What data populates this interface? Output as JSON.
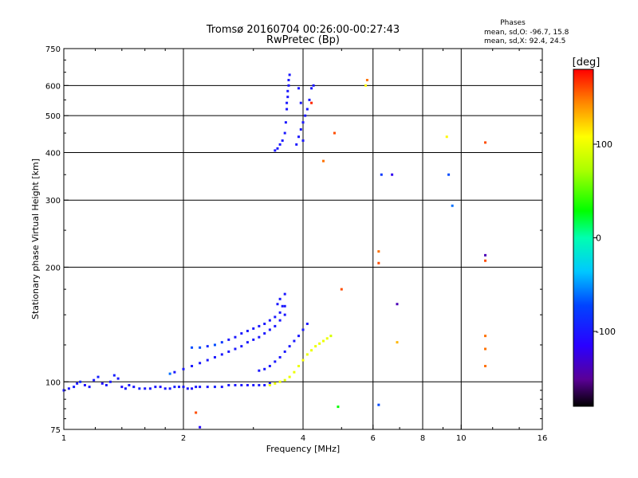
{
  "chart_data": {
    "type": "scatter",
    "title": "Tromsø 20160704 00:26:00-00:27:43",
    "subtitle": "RwPretec (Bp)",
    "xlabel": "Frequency [MHz]",
    "ylabel": "Stationary phase Virtual Height [km]",
    "x_scale": "log",
    "y_scale": "log",
    "xlim": [
      1,
      16
    ],
    "ylim": [
      75,
      750
    ],
    "x_ticks": [
      1,
      2,
      4,
      6,
      8,
      10,
      16
    ],
    "x_tick_labels": [
      "1",
      "2",
      "4",
      "6",
      "8",
      "10",
      "16"
    ],
    "x_gridlines": [
      2,
      4,
      6,
      8,
      10
    ],
    "y_ticks": [
      75,
      100,
      200,
      300,
      400,
      500,
      600,
      750
    ],
    "y_tick_labels": [
      "75",
      "100",
      "200",
      "300",
      "400",
      "500",
      "600",
      "750"
    ],
    "y_gridlines": [
      100,
      200,
      300,
      400,
      500,
      600
    ],
    "grid": true,
    "phase_info": {
      "title": "Phases",
      "line_o": "mean, sd,O: -96.7, 15.8",
      "line_x": "mean, sd,X:  92.4, 24.5"
    },
    "colorbar": {
      "label": "[deg]",
      "min": -180,
      "max": 180,
      "ticks": [
        -100,
        0,
        100
      ],
      "tick_labels": [
        "-100",
        "0",
        "100"
      ],
      "colormap": "rainbow"
    },
    "series": [
      {
        "name": "",
        "note_color": "phase",
        "points": [
          [
            1.0,
            95,
            -100
          ],
          [
            1.03,
            96,
            -100
          ],
          [
            1.06,
            97,
            -95
          ],
          [
            1.08,
            99,
            -100
          ],
          [
            1.1,
            100,
            -90
          ],
          [
            1.13,
            98,
            -105
          ],
          [
            1.16,
            97,
            -100
          ],
          [
            1.19,
            101,
            -100
          ],
          [
            1.22,
            103,
            -95
          ],
          [
            1.25,
            99,
            -105
          ],
          [
            1.28,
            98,
            -100
          ],
          [
            1.31,
            100,
            -100
          ],
          [
            1.34,
            104,
            -95
          ],
          [
            1.37,
            102,
            -100
          ],
          [
            1.4,
            97,
            -105
          ],
          [
            1.43,
            96,
            -100
          ],
          [
            1.46,
            98,
            -100
          ],
          [
            1.5,
            97,
            -100
          ],
          [
            1.55,
            96,
            -95
          ],
          [
            1.6,
            96,
            -100
          ],
          [
            1.65,
            96,
            -100
          ],
          [
            1.7,
            97,
            -100
          ],
          [
            1.75,
            97,
            -105
          ],
          [
            1.8,
            96,
            -100
          ],
          [
            1.85,
            96,
            -100
          ],
          [
            1.9,
            97,
            -95
          ],
          [
            1.95,
            97,
            -100
          ],
          [
            2.0,
            97,
            -100
          ],
          [
            2.05,
            96,
            -100
          ],
          [
            2.1,
            96,
            -105
          ],
          [
            2.15,
            97,
            -100
          ],
          [
            2.2,
            97,
            -100
          ],
          [
            2.3,
            97,
            -100
          ],
          [
            2.4,
            97,
            -95
          ],
          [
            2.5,
            97,
            -100
          ],
          [
            2.6,
            98,
            -100
          ],
          [
            2.7,
            98,
            -100
          ],
          [
            2.8,
            98,
            -100
          ],
          [
            2.9,
            98,
            -105
          ],
          [
            3.0,
            98,
            -100
          ],
          [
            3.1,
            98,
            -100
          ],
          [
            3.2,
            98,
            -100
          ],
          [
            3.3,
            99,
            -100
          ],
          [
            1.85,
            105,
            -60
          ],
          [
            1.9,
            106,
            -100
          ],
          [
            2.0,
            108,
            -100
          ],
          [
            2.1,
            110,
            -100
          ],
          [
            2.2,
            112,
            -100
          ],
          [
            2.3,
            114,
            -100
          ],
          [
            2.4,
            116,
            -100
          ],
          [
            2.5,
            118,
            -100
          ],
          [
            2.6,
            120,
            -100
          ],
          [
            2.7,
            122,
            -100
          ],
          [
            2.8,
            124,
            -100
          ],
          [
            2.9,
            127,
            -100
          ],
          [
            3.0,
            129,
            -100
          ],
          [
            3.1,
            131,
            -100
          ],
          [
            3.2,
            134,
            -100
          ],
          [
            3.3,
            137,
            -100
          ],
          [
            3.4,
            140,
            -100
          ],
          [
            3.5,
            145,
            -100
          ],
          [
            3.6,
            150,
            -100
          ],
          [
            2.1,
            123,
            -70
          ],
          [
            2.2,
            123,
            -70
          ],
          [
            2.3,
            124,
            -90
          ],
          [
            2.4,
            125,
            -70
          ],
          [
            2.5,
            127,
            -80
          ],
          [
            2.6,
            129,
            -100
          ],
          [
            2.7,
            131,
            -100
          ],
          [
            2.8,
            134,
            -100
          ],
          [
            2.9,
            136,
            -100
          ],
          [
            3.0,
            138,
            -100
          ],
          [
            3.1,
            140,
            -100
          ],
          [
            3.2,
            142,
            -100
          ],
          [
            3.3,
            145,
            -100
          ],
          [
            3.4,
            148,
            -100
          ],
          [
            3.5,
            152,
            -100
          ],
          [
            3.6,
            158,
            -100
          ],
          [
            3.1,
            107,
            -100
          ],
          [
            3.2,
            108,
            -100
          ],
          [
            3.3,
            110,
            -100
          ],
          [
            3.4,
            113,
            -100
          ],
          [
            3.5,
            116,
            -100
          ],
          [
            3.6,
            120,
            -100
          ],
          [
            3.7,
            124,
            -100
          ],
          [
            3.8,
            128,
            -100
          ],
          [
            3.9,
            132,
            -100
          ],
          [
            4.0,
            137,
            -100
          ],
          [
            4.1,
            142,
            -100
          ],
          [
            3.3,
            98,
            100
          ],
          [
            3.4,
            99,
            100
          ],
          [
            3.5,
            100,
            100
          ],
          [
            3.6,
            101,
            95
          ],
          [
            3.7,
            103,
            100
          ],
          [
            3.8,
            106,
            100
          ],
          [
            3.9,
            110,
            100
          ],
          [
            4.0,
            114,
            105
          ],
          [
            4.1,
            118,
            100
          ],
          [
            4.2,
            121,
            100
          ],
          [
            4.3,
            124,
            100
          ],
          [
            4.4,
            126,
            100
          ],
          [
            4.5,
            128,
            100
          ],
          [
            4.6,
            130,
            100
          ],
          [
            4.7,
            132,
            90
          ],
          [
            3.5,
            165,
            -100
          ],
          [
            3.45,
            160,
            -100
          ],
          [
            3.55,
            158,
            -100
          ],
          [
            3.6,
            170,
            -100
          ],
          [
            3.4,
            405,
            -100
          ],
          [
            3.45,
            410,
            -100
          ],
          [
            3.5,
            420,
            -100
          ],
          [
            3.55,
            430,
            -100
          ],
          [
            3.6,
            450,
            -100
          ],
          [
            3.62,
            480,
            -100
          ],
          [
            3.64,
            520,
            -100
          ],
          [
            3.66,
            560,
            -100
          ],
          [
            3.68,
            600,
            -100
          ],
          [
            3.7,
            640,
            -100
          ],
          [
            3.68,
            620,
            -100
          ],
          [
            3.66,
            580,
            -100
          ],
          [
            3.64,
            540,
            -100
          ],
          [
            3.85,
            420,
            -100
          ],
          [
            3.9,
            440,
            -100
          ],
          [
            3.95,
            460,
            -100
          ],
          [
            4.0,
            480,
            -100
          ],
          [
            4.05,
            500,
            -100
          ],
          [
            4.1,
            520,
            -100
          ],
          [
            4.15,
            550,
            -100
          ],
          [
            4.2,
            590,
            -100
          ],
          [
            4.25,
            600,
            -100
          ],
          [
            4.0,
            430,
            -100
          ],
          [
            3.95,
            540,
            -100
          ],
          [
            3.9,
            590,
            -100
          ],
          [
            5.8,
            620,
            150
          ],
          [
            5.75,
            600,
            110
          ],
          [
            4.8,
            450,
            160
          ],
          [
            4.5,
            380,
            150
          ],
          [
            4.2,
            540,
            170
          ],
          [
            6.3,
            350,
            -80
          ],
          [
            6.7,
            350,
            -120
          ],
          [
            9.3,
            350,
            -70
          ],
          [
            9.5,
            290,
            -60
          ],
          [
            9.2,
            440,
            110
          ],
          [
            11.5,
            425,
            160
          ],
          [
            6.2,
            220,
            150
          ],
          [
            6.2,
            205,
            160
          ],
          [
            11.5,
            215,
            -140
          ],
          [
            11.5,
            208,
            160
          ],
          [
            5.0,
            175,
            160
          ],
          [
            6.9,
            160,
            -140
          ],
          [
            6.9,
            127,
            130
          ],
          [
            11.5,
            132,
            150
          ],
          [
            11.5,
            122,
            150
          ],
          [
            11.5,
            110,
            150
          ],
          [
            4.9,
            86,
            30
          ],
          [
            6.2,
            87,
            -70
          ],
          [
            2.15,
            83,
            160
          ],
          [
            2.2,
            76,
            -110
          ]
        ]
      }
    ]
  }
}
